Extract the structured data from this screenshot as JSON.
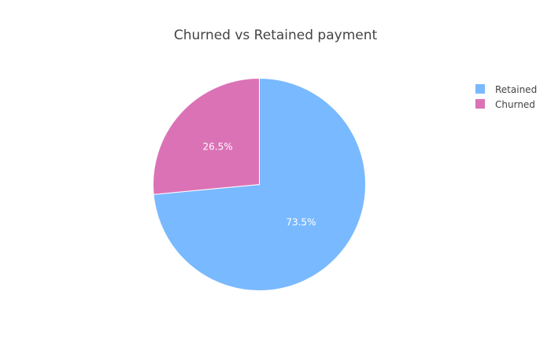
{
  "chart_data": {
    "type": "pie",
    "title": "Churned vs Retained payment",
    "slices": [
      {
        "label": "Retained",
        "value": 73.5,
        "display": "73.5%",
        "color": "#79b9ff"
      },
      {
        "label": "Churned",
        "value": 26.5,
        "display": "26.5%",
        "color": "#db72b6"
      }
    ],
    "legend": {
      "placement": "top-right",
      "entries": [
        "Retained",
        "Churned"
      ]
    }
  }
}
